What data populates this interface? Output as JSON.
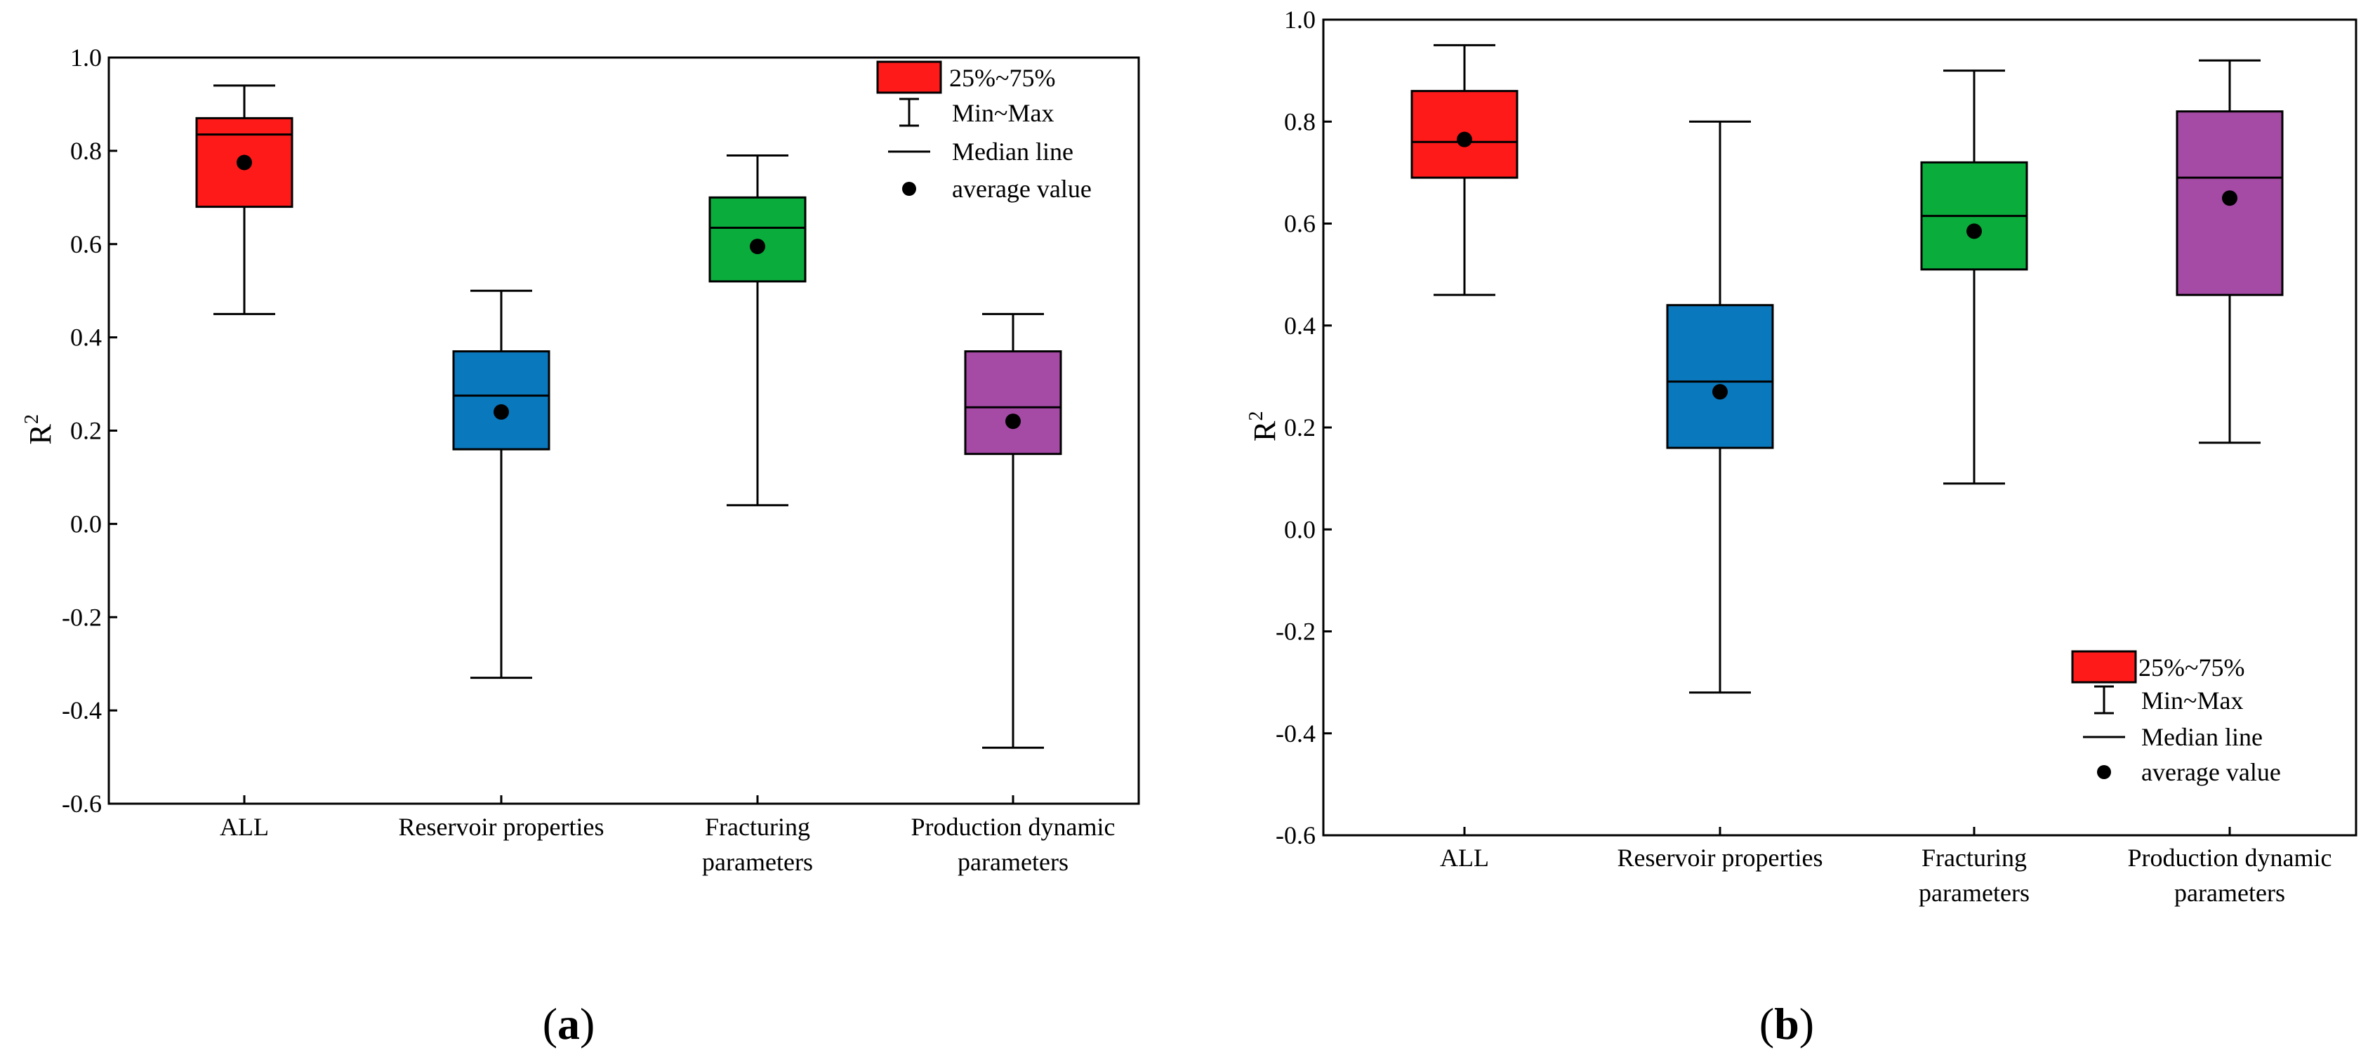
{
  "chart_data": [
    {
      "type": "box",
      "panel_label": "(a)",
      "ylabel": "R",
      "ylabel_superscript": "2",
      "ylim": [
        -0.6,
        1.0
      ],
      "yticks": [
        "-0.6",
        "-0.4",
        "-0.2",
        "0.0",
        "0.2",
        "0.4",
        "0.6",
        "0.8",
        "1.0"
      ],
      "categories": [
        {
          "label_lines": [
            "ALL"
          ],
          "color": "#ff1a1a",
          "min": 0.45,
          "q1": 0.68,
          "median": 0.835,
          "q3": 0.87,
          "max": 0.94,
          "mean": 0.775
        },
        {
          "label_lines": [
            "Reservoir properties"
          ],
          "color": "#0a78bd",
          "min": -0.33,
          "q1": 0.16,
          "median": 0.275,
          "q3": 0.37,
          "max": 0.5,
          "mean": 0.24
        },
        {
          "label_lines": [
            "Fracturing",
            "parameters"
          ],
          "color": "#0aac3c",
          "min": 0.04,
          "q1": 0.52,
          "median": 0.635,
          "q3": 0.7,
          "max": 0.79,
          "mean": 0.595
        },
        {
          "label_lines": [
            "Production dynamic",
            "parameters"
          ],
          "color": "#a54aa5",
          "min": -0.48,
          "q1": 0.15,
          "median": 0.25,
          "q3": 0.37,
          "max": 0.45,
          "mean": 0.22
        }
      ],
      "legend": {
        "placement": "top-right",
        "box": "25%~75%",
        "whisker": "Min~Max",
        "median": "Median line",
        "mean": "average value"
      }
    },
    {
      "type": "box",
      "panel_label": "(b)",
      "ylabel": "R",
      "ylabel_superscript": "2",
      "ylim": [
        -0.6,
        1.0
      ],
      "yticks": [
        "-0.6",
        "-0.4",
        "-0.2",
        "0.0",
        "0.2",
        "0.4",
        "0.6",
        "0.8",
        "1.0"
      ],
      "categories": [
        {
          "label_lines": [
            "ALL"
          ],
          "color": "#ff1a1a",
          "min": 0.46,
          "q1": 0.69,
          "median": 0.76,
          "q3": 0.86,
          "max": 0.95,
          "mean": 0.765
        },
        {
          "label_lines": [
            "Reservoir properties"
          ],
          "color": "#0a78bd",
          "min": -0.32,
          "q1": 0.16,
          "median": 0.29,
          "q3": 0.44,
          "max": 0.8,
          "mean": 0.27
        },
        {
          "label_lines": [
            "Fracturing",
            "parameters"
          ],
          "color": "#0aac3c",
          "min": 0.09,
          "q1": 0.51,
          "median": 0.615,
          "q3": 0.72,
          "max": 0.9,
          "mean": 0.585
        },
        {
          "label_lines": [
            "Production dynamic",
            "parameters"
          ],
          "color": "#a54aa5",
          "min": 0.17,
          "q1": 0.46,
          "median": 0.69,
          "q3": 0.82,
          "max": 0.92,
          "mean": 0.65
        }
      ],
      "legend": {
        "placement": "bottom-right",
        "box": "25%~75%",
        "whisker": "Min~Max",
        "median": "Median line",
        "mean": "average value"
      }
    }
  ]
}
